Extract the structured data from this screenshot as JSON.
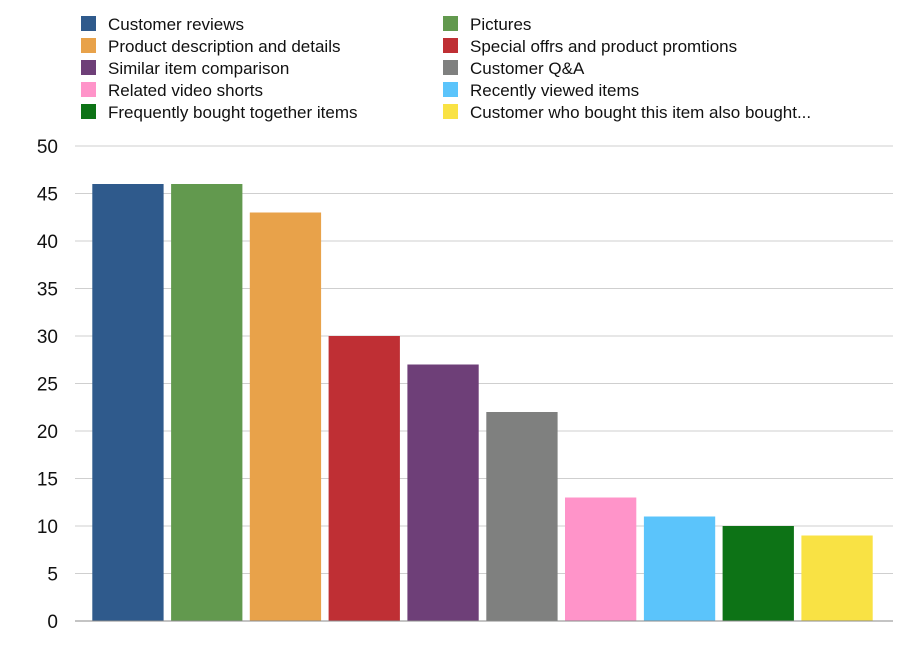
{
  "chart_data": {
    "type": "bar",
    "categories": [
      "Customer reviews",
      "Pictures",
      "Product description and details",
      "Special offrs and product promtions",
      "Similar item comparison",
      "Customer Q&A",
      "Related video shorts",
      "Recently viewed items",
      "Frequently bought together items",
      "Customer who bought this item also bought..."
    ],
    "values": [
      46,
      46,
      43,
      30,
      27,
      22,
      13,
      11,
      10,
      9
    ],
    "colors": [
      "#2f5a8c",
      "#62994e",
      "#e8a24a",
      "#bf2f34",
      "#6e3f78",
      "#7f807f",
      "#ff94c9",
      "#5bc4fb",
      "#0d7316",
      "#f9e244"
    ],
    "ylim": [
      0,
      50
    ],
    "yticks": [
      0,
      5,
      10,
      15,
      20,
      25,
      30,
      35,
      40,
      45,
      50
    ],
    "grid": true,
    "legend_position": "top",
    "legend_columns": 2,
    "legend_order": [
      "Customer reviews",
      "Pictures",
      "Product description and details",
      "Special offrs and product promtions",
      "Similar item comparison",
      "Customer Q&A",
      "Related video shorts",
      "Recently viewed items",
      "Frequently bought together items",
      "Customer who bought this item also bought..."
    ]
  }
}
